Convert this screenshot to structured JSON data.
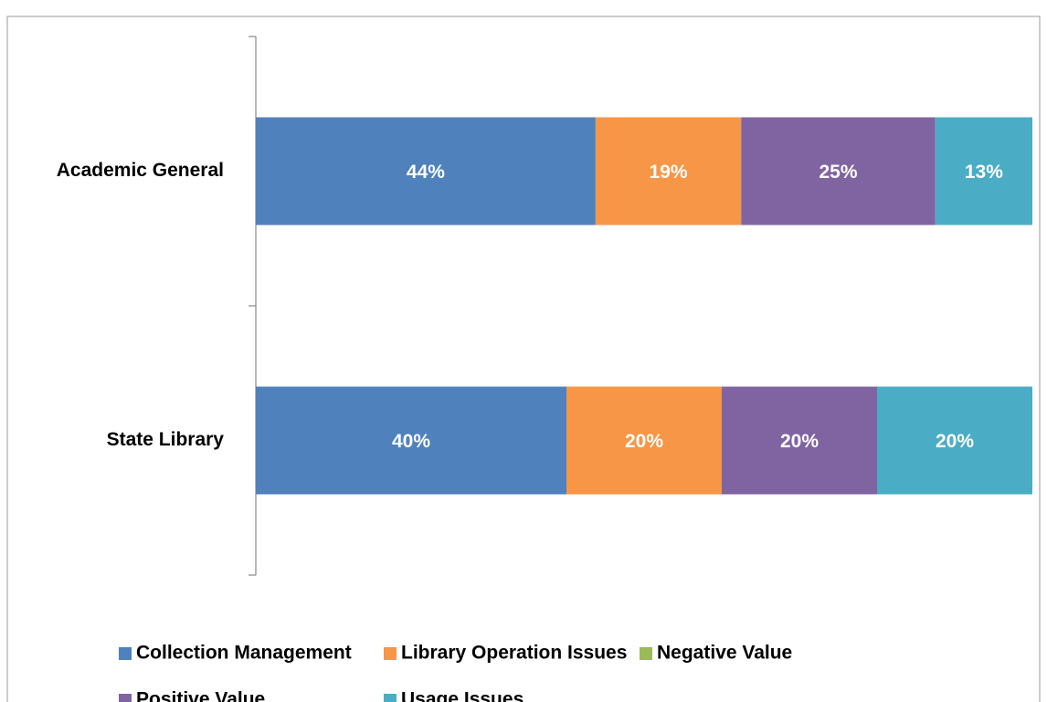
{
  "chart_data": {
    "type": "stacked_barh",
    "categories": [
      "Academic General",
      "State Library"
    ],
    "series": [
      {
        "name": "Collection Management",
        "color": "#4f81bd",
        "values": [
          43.75,
          40
        ],
        "value_labels": [
          "44%",
          "40%"
        ]
      },
      {
        "name": "Library Operation Issues",
        "color": "#f79646",
        "values": [
          18.75,
          20
        ],
        "value_labels": [
          "19%",
          "20%"
        ]
      },
      {
        "name": "Negative Value",
        "color": "#9bbb59",
        "values": [
          0,
          0
        ]
      },
      {
        "name": "Positive Value",
        "color": "#8064a2",
        "values": [
          25,
          20
        ],
        "value_labels": [
          "25%",
          "20%"
        ]
      },
      {
        "name": "Usage Issues",
        "color": "#4bacc6",
        "values": [
          12.5,
          20
        ],
        "value_labels": [
          "13%",
          "20%"
        ]
      }
    ],
    "xlim": [
      0,
      100
    ],
    "legend": "bottom"
  }
}
